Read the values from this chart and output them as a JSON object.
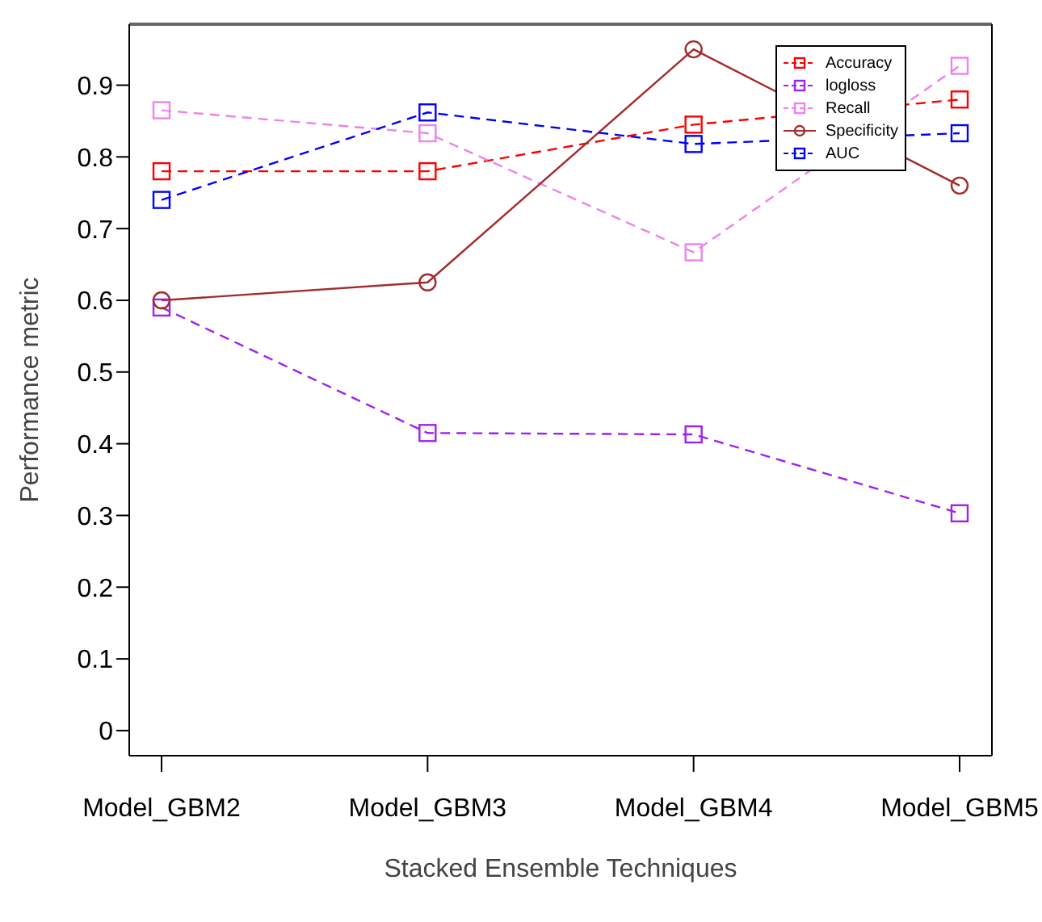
{
  "chart_data": {
    "type": "line",
    "xlabel": "Stacked Ensemble Techniques",
    "ylabel": "Performance metric",
    "categories": [
      "Model_GBM2",
      "Model_GBM3",
      "Model_GBM4",
      "Model_GBM5"
    ],
    "ylim": [
      -0.035,
      0.985
    ],
    "yticks": [
      0,
      0.1,
      0.2,
      0.3,
      0.4,
      0.5,
      0.6,
      0.7,
      0.8,
      0.9
    ],
    "grid": false,
    "legend": "top right",
    "series": [
      {
        "name": "Accuracy",
        "color": "#ff0000",
        "values": [
          0.78,
          0.78,
          0.845,
          0.88
        ],
        "marker": "square",
        "line_style": "dashed"
      },
      {
        "name": "logloss",
        "color": "#a020f0",
        "values": [
          0.59,
          0.415,
          0.413,
          0.303
        ],
        "marker": "square",
        "line_style": "dashed"
      },
      {
        "name": "Recall",
        "color": "#ee82ee",
        "values": [
          0.865,
          0.833,
          0.667,
          0.927
        ],
        "marker": "square",
        "line_style": "dashed"
      },
      {
        "name": "Specificity",
        "color": "#a52a2a",
        "values": [
          0.6,
          0.625,
          0.95,
          0.76
        ],
        "marker": "circle",
        "line_style": "solid"
      },
      {
        "name": "AUC",
        "color": "#0000ff",
        "values": [
          0.74,
          0.862,
          0.818,
          0.833
        ],
        "marker": "square",
        "line_style": "dashed"
      }
    ]
  }
}
